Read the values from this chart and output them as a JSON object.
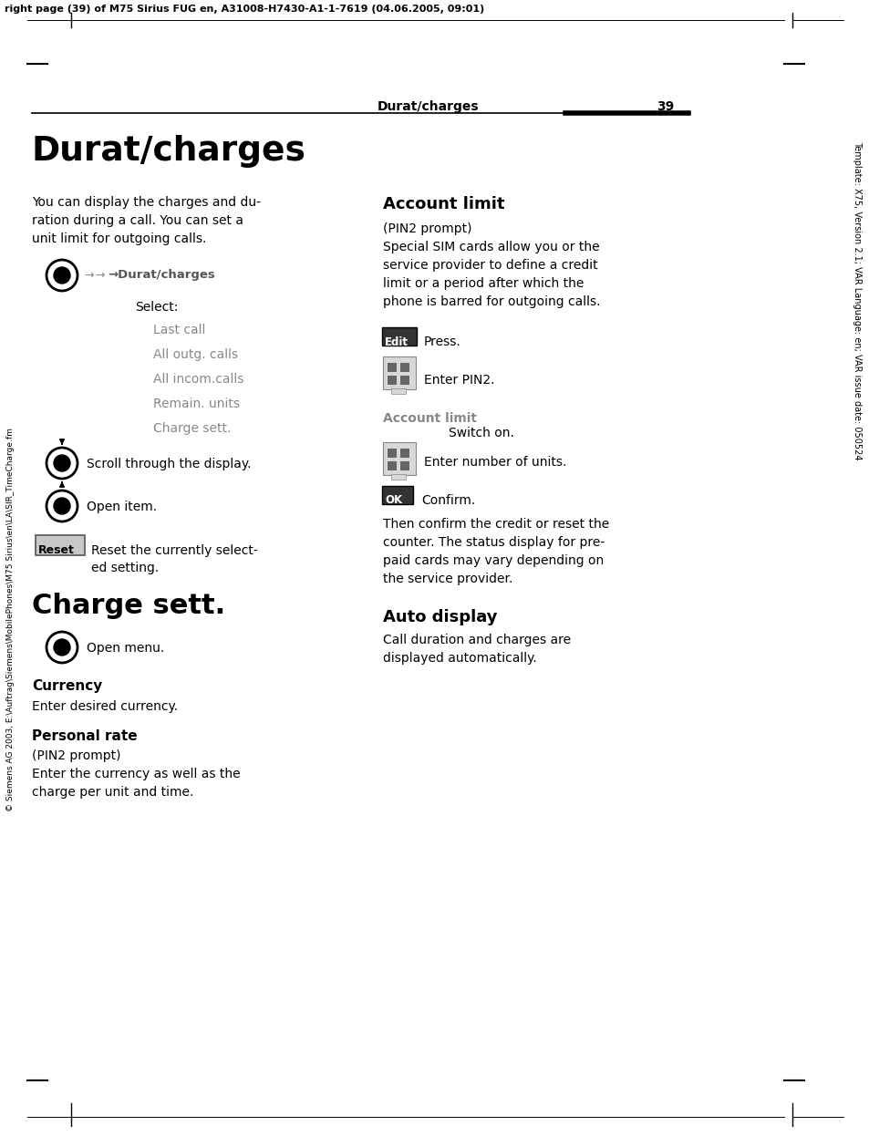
{
  "page_header_text": "right page (39) of M75 Sirius FUG en, A31008-H7430-A1-1-7619 (04.06.2005, 09:01)",
  "right_sidebar_text": "Template: X75, Version 2.1; VAR Language: en; VAR issue date: 050524",
  "left_sidebar_text": "© Siemens AG 2003, E:\\Auftrag\\Siemens\\MobilePhones\\M75 Sirius\\en\\LA\\SIR_TimeCharge.fm",
  "header_section": "Durat/charges",
  "header_page": "39",
  "main_title": "Durat/charges",
  "intro_text": "You can display the charges and du-\nration during a call. You can set a\nunit limit for outgoing calls.",
  "select_text": "Select:",
  "menu_items": [
    "Last call",
    "All outg. calls",
    "All incom.calls",
    "Remain. units",
    "Charge sett."
  ],
  "scroll_text": "Scroll through the display.",
  "open_item_text": "Open item.",
  "reset_label": "Reset",
  "reset_text": "Reset the currently select-\ned setting.",
  "charge_sett_title": "Charge sett.",
  "open_menu_text": "Open menu.",
  "currency_title": "Currency",
  "currency_text": "Enter desired currency.",
  "personal_rate_title": "Personal rate",
  "personal_rate_sub": "(PIN2 prompt)",
  "personal_rate_text": "Enter the currency as well as the\ncharge per unit and time.",
  "account_limit_title": "Account limit",
  "account_limit_sub": "(PIN2 prompt)",
  "account_limit_text": "Special SIM cards allow you or the\nservice provider to define a credit\nlimit or a period after which the\nphone is barred for outgoing calls.",
  "edit_label": "Edit",
  "edit_press_text": "Press.",
  "enter_pin2_text": "Enter PIN2.",
  "account_limit_label": "Account limit",
  "switch_on_text": "Switch on.",
  "enter_units_text": "Enter number of units.",
  "ok_label": "OK",
  "confirm_text": "Confirm.",
  "then_confirm_text": "Then confirm the credit or reset the\ncounter. The status display for pre-\npaid cards may vary depending on\nthe service provider.",
  "auto_display_title": "Auto display",
  "auto_display_text": "Call duration and charges are\ndisplayed automatically.",
  "bg_color": "#ffffff",
  "text_color": "#000000",
  "gray_color": "#888888",
  "dark_color": "#333333"
}
